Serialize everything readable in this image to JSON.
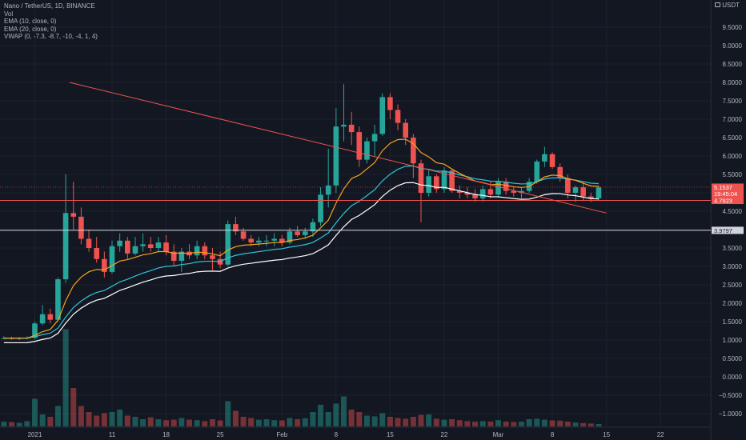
{
  "legend": {
    "symbol": "Nano / TetherUS, 1D, BINANCE",
    "vol": "Vol",
    "ema10": "EMA (10, close, 0)",
    "ema20": "EMA (20, close, 0)",
    "vwap": "VWAP (0, -7.3, -8.7, -10, -4, 1, 4)"
  },
  "currency": "USDT",
  "currency_icon": "lock-icon",
  "colors": {
    "background": "#131722",
    "up": "#26a69a",
    "down": "#ef5350",
    "ema10": "#f7a21b",
    "ema20": "#2ec4d6",
    "vwap": "#ffffff",
    "trendline": "#ef5350",
    "level_red": "#ef5350",
    "level_white": "#d1d4dc"
  },
  "price_tags": {
    "last_price": "5.1537",
    "countdown": "19:45:04",
    "red_level": "4.7923",
    "white_level": "3.9797"
  },
  "chart_data": {
    "type": "candlestick",
    "y_ticks": [
      "9.5000",
      "9.0000",
      "8.5000",
      "8.0000",
      "7.5000",
      "7.0000",
      "6.5000",
      "6.0000",
      "5.5000",
      "5.0000",
      "4.5000",
      "4.0000",
      "3.5000",
      "3.0000",
      "2.5000",
      "2.0000",
      "1.5000",
      "1.0000",
      "0.5000",
      "0.0000",
      "-0.5000",
      "-1.0000"
    ],
    "x_ticks": [
      "2021",
      "11",
      "18",
      "25",
      "Feb",
      "8",
      "15",
      "22",
      "Mar",
      "8",
      "15",
      "22"
    ],
    "ylim": [
      -1.5,
      9.9
    ],
    "levels": [
      4.7923,
      3.9797
    ],
    "last_price": 5.1537,
    "trendline": {
      "from": {
        "day": 8.5,
        "price": 8.0
      },
      "to": {
        "day": 78,
        "price": 4.45
      }
    },
    "days": [
      "2020-12-31",
      "2021-01-01",
      "2021-01-02",
      "2021-01-03",
      "2021-01-04",
      "2021-01-05",
      "2021-01-06",
      "2021-01-07",
      "2021-01-08",
      "2021-01-09",
      "2021-01-10",
      "2021-01-11",
      "2021-01-12",
      "2021-01-13",
      "2021-01-14",
      "2021-01-15",
      "2021-01-16",
      "2021-01-17",
      "2021-01-18",
      "2021-01-19",
      "2021-01-20",
      "2021-01-21",
      "2021-01-22",
      "2021-01-23",
      "2021-01-24",
      "2021-01-25",
      "2021-01-26",
      "2021-01-27",
      "2021-01-28",
      "2021-01-29",
      "2021-01-30",
      "2021-01-31",
      "2021-02-01",
      "2021-02-02",
      "2021-02-03",
      "2021-02-04",
      "2021-02-05",
      "2021-02-06",
      "2021-02-07",
      "2021-02-08",
      "2021-02-09",
      "2021-02-10",
      "2021-02-11",
      "2021-02-12",
      "2021-02-13",
      "2021-02-14",
      "2021-02-15",
      "2021-02-16",
      "2021-02-17",
      "2021-02-18",
      "2021-02-19",
      "2021-02-20",
      "2021-02-21",
      "2021-02-22",
      "2021-02-23",
      "2021-02-24",
      "2021-02-25",
      "2021-02-26",
      "2021-02-27",
      "2021-02-28",
      "2021-03-01",
      "2021-03-02",
      "2021-03-03",
      "2021-03-04",
      "2021-03-05",
      "2021-03-06",
      "2021-03-07",
      "2021-03-08",
      "2021-03-09",
      "2021-03-10",
      "2021-03-11",
      "2021-03-12",
      "2021-03-13",
      "2021-03-14",
      "2021-03-15",
      "2021-03-16",
      "2021-03-17",
      "2021-03-18"
    ],
    "candles": [
      [
        1.05,
        1.1,
        1.02,
        1.05
      ],
      [
        1.05,
        1.09,
        1.01,
        1.04
      ],
      [
        1.04,
        1.08,
        1.0,
        1.05
      ],
      [
        1.05,
        1.1,
        1.02,
        1.06
      ],
      [
        1.06,
        1.5,
        1.02,
        1.45
      ],
      [
        1.45,
        1.95,
        1.4,
        1.7
      ],
      [
        1.7,
        1.85,
        1.45,
        1.55
      ],
      [
        1.55,
        2.7,
        1.5,
        2.65
      ],
      [
        2.65,
        5.5,
        2.55,
        4.45
      ],
      [
        4.45,
        5.3,
        4.0,
        4.35
      ],
      [
        4.35,
        4.6,
        3.6,
        3.75
      ],
      [
        3.75,
        4.0,
        3.4,
        3.5
      ],
      [
        3.5,
        3.8,
        3.1,
        3.2
      ],
      [
        3.2,
        3.4,
        2.7,
        2.85
      ],
      [
        2.85,
        3.7,
        2.8,
        3.55
      ],
      [
        3.55,
        3.9,
        3.4,
        3.7
      ],
      [
        3.7,
        3.8,
        3.2,
        3.35
      ],
      [
        3.35,
        3.8,
        3.3,
        3.55
      ],
      [
        3.55,
        3.9,
        3.4,
        3.6
      ],
      [
        3.6,
        3.8,
        3.4,
        3.5
      ],
      [
        3.5,
        3.8,
        3.4,
        3.65
      ],
      [
        3.65,
        3.85,
        3.3,
        3.4
      ],
      [
        3.4,
        3.6,
        3.0,
        3.15
      ],
      [
        3.15,
        3.5,
        2.85,
        3.4
      ],
      [
        3.4,
        3.6,
        3.2,
        3.3
      ],
      [
        3.3,
        3.7,
        3.2,
        3.55
      ],
      [
        3.55,
        3.65,
        3.2,
        3.3
      ],
      [
        3.3,
        3.5,
        2.9,
        3.2
      ],
      [
        3.2,
        3.4,
        2.95,
        3.05
      ],
      [
        3.05,
        4.25,
        3.0,
        4.15
      ],
      [
        4.15,
        4.35,
        3.85,
        3.95
      ],
      [
        3.95,
        4.05,
        3.7,
        3.75
      ],
      [
        3.75,
        3.85,
        3.55,
        3.65
      ],
      [
        3.65,
        3.8,
        3.55,
        3.7
      ],
      [
        3.7,
        3.85,
        3.55,
        3.7
      ],
      [
        3.7,
        3.9,
        3.55,
        3.75
      ],
      [
        3.75,
        3.85,
        3.55,
        3.65
      ],
      [
        3.65,
        4.05,
        3.6,
        3.95
      ],
      [
        3.95,
        4.1,
        3.8,
        3.85
      ],
      [
        3.85,
        4.05,
        3.75,
        3.95
      ],
      [
        3.95,
        4.3,
        3.8,
        4.2
      ],
      [
        4.2,
        5.15,
        4.1,
        4.95
      ],
      [
        4.95,
        6.2,
        4.6,
        5.2
      ],
      [
        5.2,
        7.3,
        5.0,
        6.8
      ],
      [
        6.8,
        7.95,
        6.4,
        6.85
      ],
      [
        6.85,
        7.2,
        6.3,
        6.65
      ],
      [
        6.65,
        6.8,
        5.7,
        5.9
      ],
      [
        5.9,
        6.5,
        5.8,
        6.4
      ],
      [
        6.4,
        6.85,
        6.0,
        6.6
      ],
      [
        6.6,
        7.7,
        6.55,
        7.6
      ],
      [
        7.6,
        7.7,
        7.0,
        7.25
      ],
      [
        7.25,
        7.4,
        6.7,
        6.9
      ],
      [
        6.9,
        7.0,
        6.3,
        6.5
      ],
      [
        6.5,
        6.6,
        5.4,
        5.8
      ],
      [
        5.8,
        5.9,
        4.2,
        5.0
      ],
      [
        5.0,
        5.6,
        4.9,
        5.45
      ],
      [
        5.45,
        5.5,
        5.0,
        5.1
      ],
      [
        5.1,
        5.7,
        5.0,
        5.6
      ],
      [
        5.6,
        5.65,
        5.0,
        5.05
      ],
      [
        5.05,
        5.2,
        4.85,
        5.0
      ],
      [
        5.0,
        5.15,
        4.85,
        4.95
      ],
      [
        4.95,
        5.1,
        4.75,
        4.85
      ],
      [
        4.85,
        5.2,
        4.75,
        5.1
      ],
      [
        5.1,
        5.3,
        4.85,
        4.95
      ],
      [
        4.95,
        5.4,
        4.9,
        5.3
      ],
      [
        5.3,
        5.4,
        4.95,
        5.05
      ],
      [
        5.05,
        5.15,
        4.9,
        5.0
      ],
      [
        5.0,
        5.15,
        4.85,
        5.05
      ],
      [
        5.05,
        5.4,
        5.0,
        5.3
      ],
      [
        5.3,
        5.9,
        5.25,
        5.85
      ],
      [
        5.85,
        6.25,
        5.7,
        6.05
      ],
      [
        6.05,
        6.1,
        5.65,
        5.7
      ],
      [
        5.7,
        5.8,
        5.3,
        5.4
      ],
      [
        5.4,
        5.5,
        4.85,
        5.0
      ],
      [
        5.0,
        5.2,
        4.75,
        5.15
      ],
      [
        5.15,
        5.3,
        4.8,
        4.9
      ],
      [
        4.9,
        5.0,
        4.75,
        4.85
      ],
      [
        4.85,
        5.2,
        4.8,
        5.15
      ]
    ],
    "volume": [
      0.2,
      0.18,
      0.15,
      0.22,
      1.15,
      0.5,
      0.4,
      0.85,
      4.05,
      1.6,
      0.85,
      0.6,
      0.45,
      0.55,
      0.6,
      0.7,
      0.45,
      0.4,
      0.3,
      0.38,
      0.3,
      0.26,
      0.28,
      0.35,
      0.28,
      0.26,
      0.22,
      0.3,
      0.25,
      1.05,
      0.65,
      0.4,
      0.35,
      0.28,
      0.3,
      0.26,
      0.25,
      0.35,
      0.3,
      0.34,
      0.6,
      0.9,
      0.6,
      0.95,
      1.25,
      0.7,
      0.6,
      0.45,
      0.42,
      0.55,
      0.4,
      0.35,
      0.32,
      0.4,
      0.48,
      0.5,
      0.32,
      0.28,
      0.3,
      0.26,
      0.22,
      0.2,
      0.22,
      0.2,
      0.26,
      0.2,
      0.18,
      0.2,
      0.3,
      0.32,
      0.28,
      0.25,
      0.24,
      0.2,
      0.16,
      0.14,
      0.12,
      0.1
    ]
  }
}
